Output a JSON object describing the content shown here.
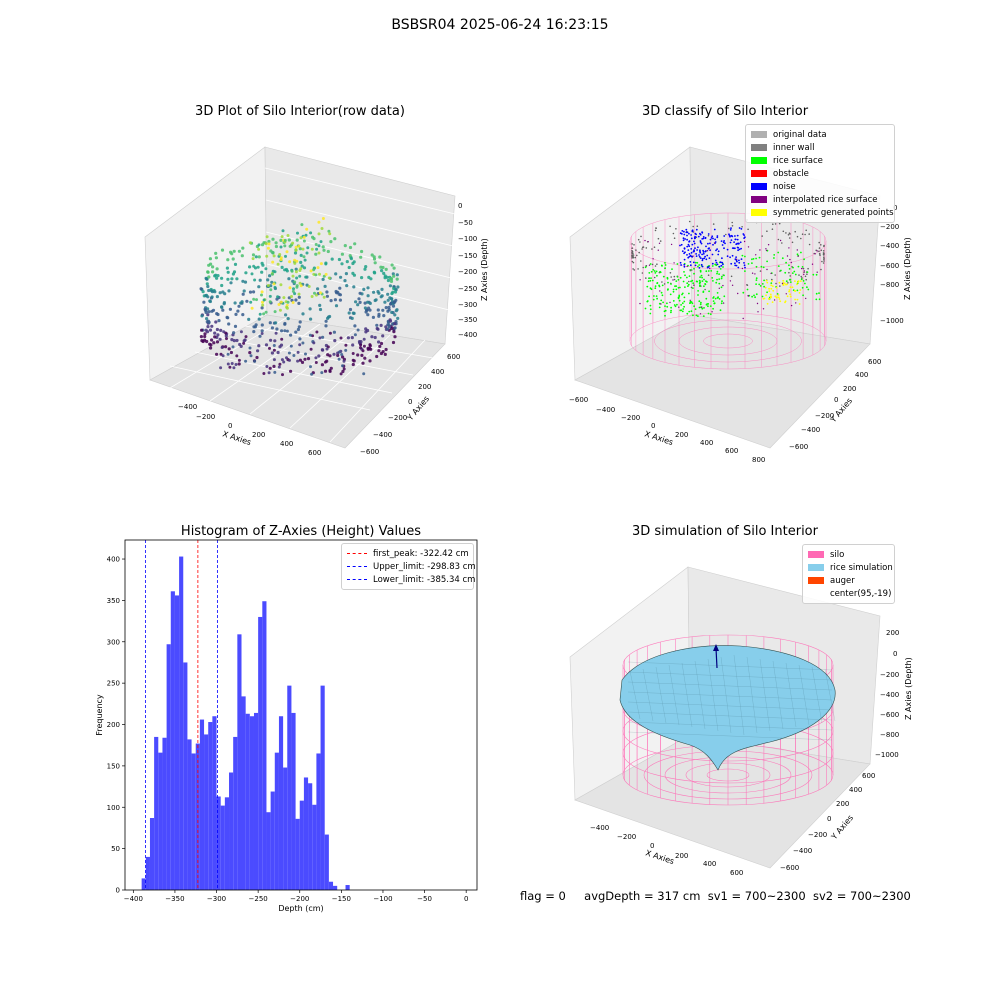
{
  "suptitle": "BSBSR04 2025-06-24 16:23:15",
  "status": {
    "flag": "flag = 0",
    "avg_depth": "avgDepth = 317 cm",
    "sv1": "sv1 = 700~2300",
    "sv2": "sv2 = 700~2300"
  },
  "colors": {
    "hist_bar": "#4b4bff",
    "first_peak": "#ff0000",
    "limits": "#0000ff",
    "silo": "#ff69b4",
    "rice_sim": "#87ceeb",
    "auger": "#ff4500"
  },
  "chart_data": [
    {
      "type": "scatter",
      "projection": "3d",
      "title": "3D Plot of Silo Interior(row data)",
      "xlabel": "X Axies",
      "ylabel": "Y Axies",
      "zlabel": "Z Axies (Depth)",
      "x_ticks": [
        "−400",
        "−200",
        "0",
        "200",
        "400",
        "600"
      ],
      "y_ticks": [
        "−600",
        "−400",
        "−200",
        "0",
        "200",
        "400",
        "600"
      ],
      "z_ticks": [
        "0",
        "−50",
        "−100",
        "−150",
        "−200",
        "−250",
        "−300",
        "−350",
        "−400"
      ],
      "colormap": "viridis"
    },
    {
      "type": "scatter",
      "projection": "3d",
      "title": "3D classify of Silo Interior",
      "xlabel": "X Axies",
      "ylabel": "Y Axies",
      "zlabel": "Z Axies (Depth)",
      "x_ticks": [
        "−600",
        "−400",
        "−200",
        "0",
        "200",
        "400",
        "600",
        "800"
      ],
      "y_ticks": [
        "−600",
        "−400",
        "−200",
        "0",
        "200",
        "400",
        "600"
      ],
      "z_ticks": [
        "0",
        "−200",
        "−400",
        "−600",
        "−800",
        "−1000"
      ],
      "legend": [
        {
          "label": "original data",
          "color": "#b0b0b0"
        },
        {
          "label": "inner wall",
          "color": "#808080"
        },
        {
          "label": "rice surface",
          "color": "#00ff00"
        },
        {
          "label": "obstacle",
          "color": "#ff0000"
        },
        {
          "label": "noise",
          "color": "#0000ff"
        },
        {
          "label": "interpolated rice surface",
          "color": "#800080"
        },
        {
          "label": "symmetric generated points",
          "color": "#ffff00"
        }
      ],
      "legend_loc": "upper right"
    },
    {
      "type": "bar",
      "title": "Histogram of Z-Axies (Height) Values",
      "xlabel": "Depth (cm)",
      "ylabel": "Frequency",
      "xlim": [
        -410,
        13
      ],
      "ylim": [
        0,
        423
      ],
      "x_ticks": [
        -400,
        -350,
        -300,
        -250,
        -200,
        -150,
        -100,
        -50,
        0
      ],
      "x_tick_labels": [
        "−400",
        "−350",
        "−300",
        "−250",
        "−200",
        "−150",
        "−100",
        "−50",
        "0"
      ],
      "y_ticks": [
        0,
        50,
        100,
        150,
        200,
        250,
        300,
        350,
        400
      ],
      "bin_start": -390,
      "bin_width": 5,
      "values": [
        14,
        40,
        87,
        185,
        166,
        184,
        297,
        361,
        356,
        403,
        275,
        182,
        165,
        177,
        206,
        188,
        203,
        210,
        113,
        102,
        112,
        142,
        185,
        309,
        234,
        213,
        210,
        214,
        330,
        349,
        94,
        119,
        166,
        210,
        148,
        247,
        214,
        86,
        108,
        136,
        129,
        103,
        165,
        247,
        67,
        10,
        5,
        0,
        0,
        6
      ],
      "vlines": [
        {
          "x": -322.42,
          "label": "first_peak: -322.42 cm",
          "color": "#ff0000"
        },
        {
          "x": -298.83,
          "label": "Upper_limit: -298.83 cm",
          "color": "#0000ff"
        },
        {
          "x": -385.34,
          "label": "Lower_limit: -385.34 cm",
          "color": "#0000ff"
        }
      ],
      "legend_loc": "upper right"
    },
    {
      "type": "surface",
      "projection": "3d",
      "title": "3D simulation of Silo Interior",
      "xlabel": "X Axies",
      "ylabel": "Y Axies",
      "zlabel": "Z Axies (Depth)",
      "x_ticks": [
        "−400",
        "−200",
        "0",
        "200",
        "400",
        "600"
      ],
      "y_ticks": [
        "−600",
        "−400",
        "−200",
        "0",
        "200",
        "400",
        "600"
      ],
      "z_ticks": [
        "200",
        "0",
        "−200",
        "−400",
        "−600",
        "−800",
        "−1000"
      ],
      "legend": [
        {
          "label": "silo",
          "color": "#ff69b4"
        },
        {
          "label": "rice simulation",
          "color": "#87ceeb"
        },
        {
          "label": "auger",
          "color": "#ff4500"
        },
        {
          "label": "center(95,-19)",
          "color": ""
        }
      ],
      "legend_loc": "upper right"
    }
  ]
}
